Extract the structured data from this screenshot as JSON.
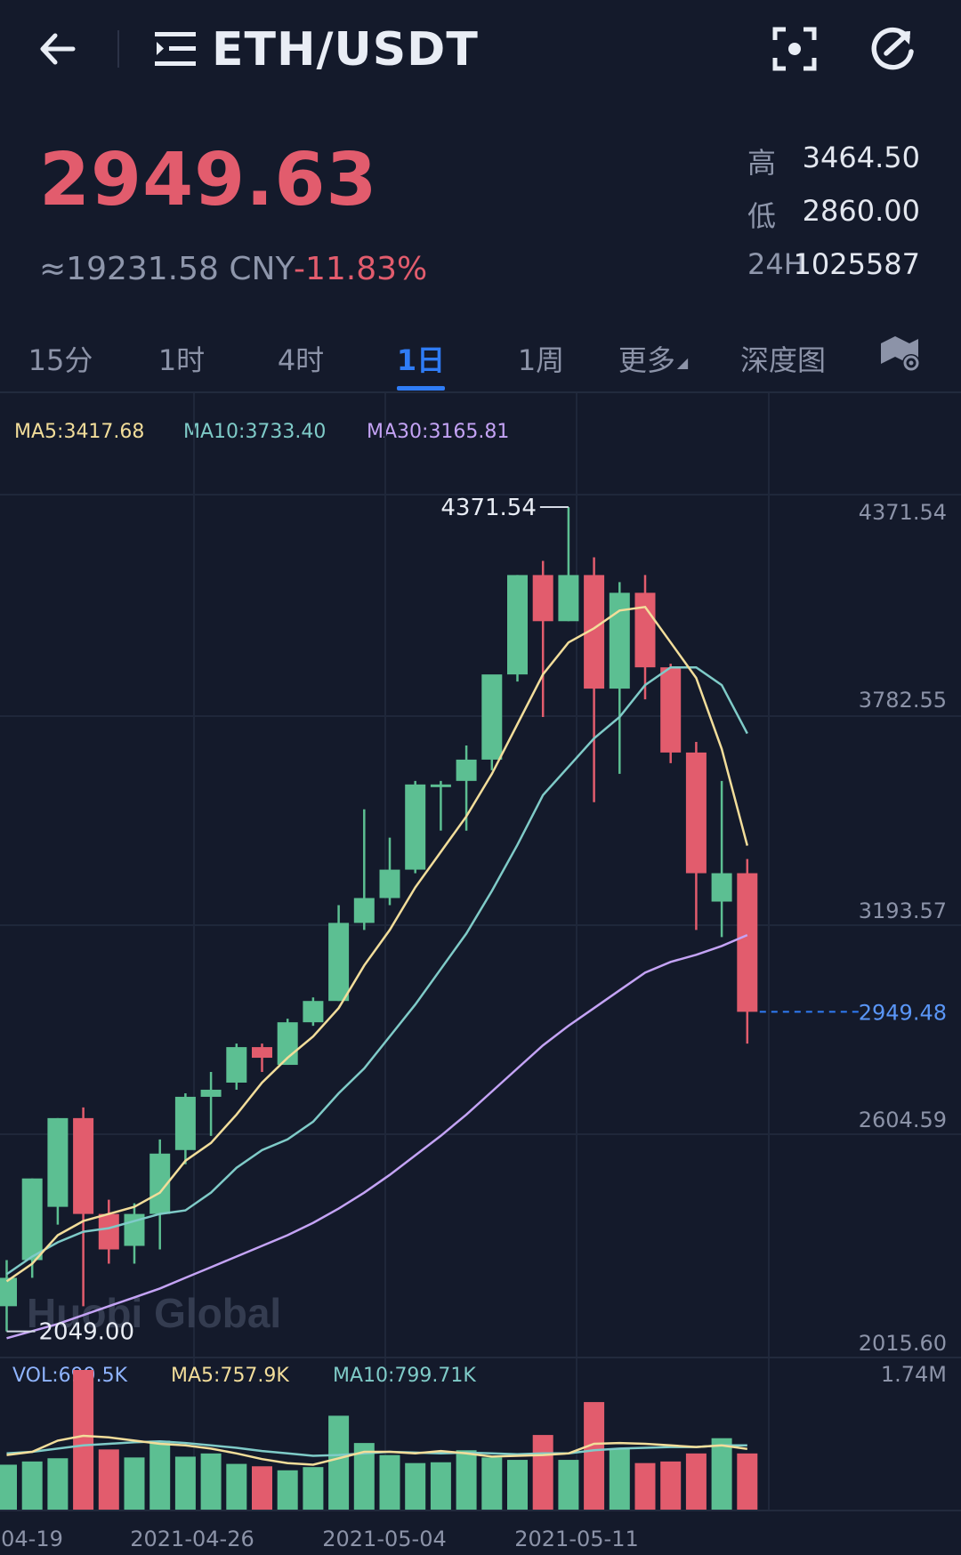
{
  "header": {
    "title": "ETH/USDT",
    "icons": [
      "back-arrow-icon",
      "menu-icon",
      "focus-scan-icon",
      "refresh-icon"
    ]
  },
  "ticker": {
    "price": "2949.63",
    "cny": "≈19231.58 CNY",
    "change_pct": "-11.83%",
    "high_label": "高",
    "high": "3464.50",
    "low_label": "低",
    "low": "2860.00",
    "vol_label": "24H",
    "vol": "1025587"
  },
  "tabs": [
    {
      "label": "15分"
    },
    {
      "label": "1时"
    },
    {
      "label": "4时"
    },
    {
      "label": "1日",
      "active": true
    },
    {
      "label": "1周"
    },
    {
      "label": "更多"
    },
    {
      "label": "深度图"
    }
  ],
  "ma_legend": {
    "ma5": "MA5:3417.68",
    "ma10": "MA10:3733.40",
    "ma30": "MA30:3165.81"
  },
  "vol_legend": {
    "vol": "VOL:699.5K",
    "ma5": "MA5:757.9K",
    "ma10": "MA10:799.71K",
    "max": "1.74M"
  },
  "watermark": "Huobi Global",
  "colors": {
    "up": "#5cbf92",
    "down": "#e25c6d",
    "ma5": "#f2dd9a",
    "ma10": "#7fcbc8",
    "ma30": "#c4a3f5",
    "accent": "#2f7cf6"
  },
  "chart_data": {
    "type": "candlestick",
    "y_axis_labels": [
      "4371.54",
      "3782.55",
      "3193.57",
      "2604.59",
      "2015.60"
    ],
    "ylim": [
      2015.6,
      4371.54
    ],
    "x_labels": [
      "04-19",
      "2021-04-26",
      "2021-05-04",
      "2021-05-11"
    ],
    "max_price_label": "4371.54",
    "min_price_label": "2049.00",
    "last_price_label": "2949.48",
    "candles": [
      {
        "o": 2120,
        "h": 2250,
        "l": 2049,
        "c": 2200
      },
      {
        "o": 2250,
        "h": 2480,
        "l": 2200,
        "c": 2480
      },
      {
        "o": 2400,
        "h": 2650,
        "l": 2350,
        "c": 2650
      },
      {
        "o": 2650,
        "h": 2680,
        "l": 2120,
        "c": 2380
      },
      {
        "o": 2380,
        "h": 2420,
        "l": 2240,
        "c": 2280
      },
      {
        "o": 2290,
        "h": 2410,
        "l": 2240,
        "c": 2380
      },
      {
        "o": 2380,
        "h": 2590,
        "l": 2280,
        "c": 2550
      },
      {
        "o": 2560,
        "h": 2720,
        "l": 2520,
        "c": 2710
      },
      {
        "o": 2710,
        "h": 2780,
        "l": 2600,
        "c": 2730
      },
      {
        "o": 2750,
        "h": 2860,
        "l": 2730,
        "c": 2850
      },
      {
        "o": 2850,
        "h": 2860,
        "l": 2780,
        "c": 2820
      },
      {
        "o": 2800,
        "h": 2930,
        "l": 2800,
        "c": 2920
      },
      {
        "o": 2920,
        "h": 2990,
        "l": 2910,
        "c": 2980
      },
      {
        "o": 2980,
        "h": 3250,
        "l": 2980,
        "c": 3200
      },
      {
        "o": 3200,
        "h": 3520,
        "l": 3180,
        "c": 3270
      },
      {
        "o": 3270,
        "h": 3440,
        "l": 3250,
        "c": 3350
      },
      {
        "o": 3350,
        "h": 3600,
        "l": 3340,
        "c": 3590
      },
      {
        "o": 3590,
        "h": 3600,
        "l": 3460,
        "c": 3590
      },
      {
        "o": 3600,
        "h": 3700,
        "l": 3460,
        "c": 3660
      },
      {
        "o": 3660,
        "h": 3880,
        "l": 3630,
        "c": 3900
      },
      {
        "o": 3900,
        "h": 4180,
        "l": 3880,
        "c": 4180
      },
      {
        "o": 4180,
        "h": 4220,
        "l": 3780,
        "c": 4050
      },
      {
        "o": 4050,
        "h": 4371.54,
        "l": 4050,
        "c": 4180
      },
      {
        "o": 4180,
        "h": 4230,
        "l": 3540,
        "c": 3860
      },
      {
        "o": 3860,
        "h": 4160,
        "l": 3620,
        "c": 4130
      },
      {
        "o": 4130,
        "h": 4180,
        "l": 3830,
        "c": 3920
      },
      {
        "o": 3920,
        "h": 3930,
        "l": 3650,
        "c": 3680
      },
      {
        "o": 3680,
        "h": 3710,
        "l": 3180,
        "c": 3340
      },
      {
        "o": 3260,
        "h": 3600,
        "l": 3160,
        "c": 3340
      },
      {
        "o": 3340,
        "h": 3380,
        "l": 2860,
        "c": 2949.48
      }
    ],
    "ma5": [
      2190,
      2240,
      2320,
      2360,
      2380,
      2400,
      2440,
      2530,
      2580,
      2660,
      2750,
      2820,
      2880,
      2960,
      3080,
      3180,
      3300,
      3400,
      3500,
      3620,
      3760,
      3900,
      3990,
      4030,
      4080,
      4090,
      3990,
      3890,
      3690,
      3417.68
    ],
    "ma10": [
      2210,
      2260,
      2300,
      2330,
      2340,
      2360,
      2380,
      2390,
      2440,
      2510,
      2560,
      2590,
      2640,
      2720,
      2790,
      2880,
      2970,
      3070,
      3170,
      3290,
      3420,
      3560,
      3640,
      3720,
      3780,
      3870,
      3920,
      3920,
      3870,
      3733.4
    ],
    "ma30": [
      2030,
      2050,
      2070,
      2095,
      2120,
      2145,
      2170,
      2200,
      2230,
      2260,
      2290,
      2320,
      2355,
      2395,
      2440,
      2490,
      2545,
      2600,
      2660,
      2725,
      2790,
      2855,
      2910,
      2960,
      3010,
      3060,
      3090,
      3110,
      3135,
      3165.81
    ],
    "volume": {
      "ylim": [
        0,
        1.74
      ],
      "values": [
        0.56,
        0.6,
        0.64,
        1.74,
        0.75,
        0.65,
        0.86,
        0.66,
        0.7,
        0.57,
        0.54,
        0.49,
        0.53,
        1.17,
        0.83,
        0.68,
        0.58,
        0.59,
        0.74,
        0.65,
        0.62,
        0.93,
        0.62,
        1.34,
        0.76,
        0.58,
        0.6,
        0.7,
        0.89,
        0.7
      ],
      "ma5": [
        0.68,
        0.72,
        0.86,
        0.92,
        0.9,
        0.86,
        0.82,
        0.8,
        0.76,
        0.7,
        0.63,
        0.58,
        0.56,
        0.64,
        0.72,
        0.72,
        0.7,
        0.73,
        0.7,
        0.66,
        0.67,
        0.68,
        0.7,
        0.82,
        0.83,
        0.82,
        0.8,
        0.78,
        0.8,
        0.757
      ],
      "ma10": [
        0.7,
        0.72,
        0.76,
        0.8,
        0.82,
        0.84,
        0.85,
        0.83,
        0.8,
        0.77,
        0.73,
        0.7,
        0.67,
        0.68,
        0.7,
        0.72,
        0.71,
        0.7,
        0.71,
        0.7,
        0.69,
        0.7,
        0.7,
        0.74,
        0.76,
        0.77,
        0.78,
        0.78,
        0.8,
        0.7997
      ]
    }
  }
}
